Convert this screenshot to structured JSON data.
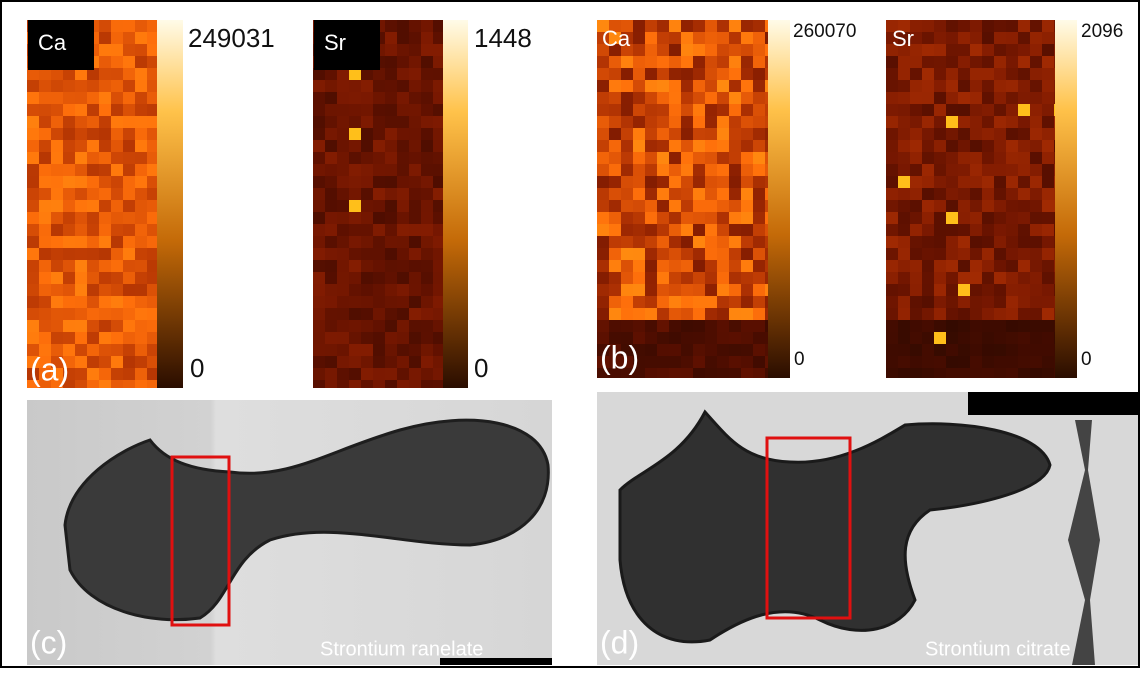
{
  "panels": [
    {
      "label": "(a)",
      "maps": [
        {
          "element": "Ca",
          "max": "249031",
          "min": "0"
        },
        {
          "element": "Sr",
          "max": "1448",
          "min": "0"
        }
      ]
    },
    {
      "label": "(b)",
      "maps": [
        {
          "element": "Ca",
          "max": "260070",
          "min": "0"
        },
        {
          "element": "Sr",
          "max": "2096",
          "min": "0"
        }
      ]
    },
    {
      "label": "(c)",
      "caption": "Strontium ranelate"
    },
    {
      "label": "(d)",
      "caption": "Strontium citrate"
    }
  ]
}
